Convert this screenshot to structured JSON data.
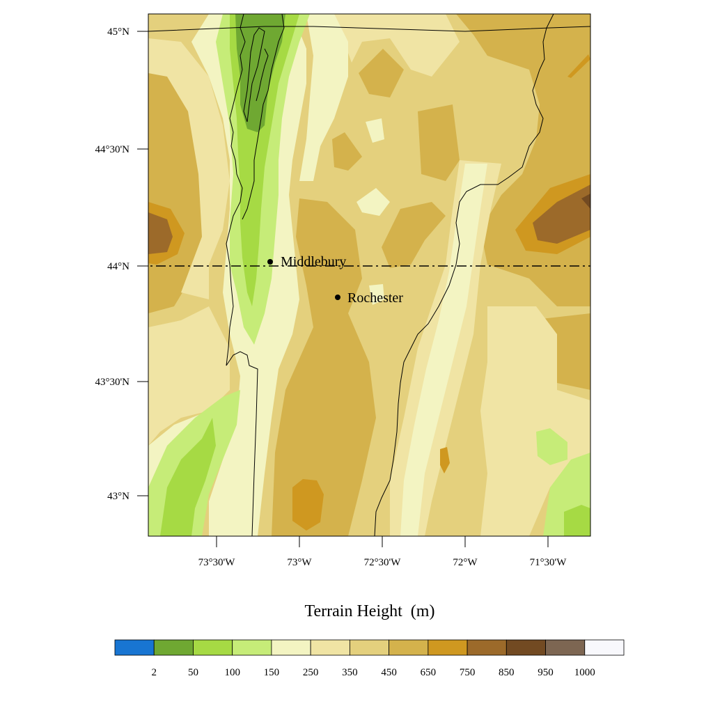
{
  "map": {
    "title": "Terrain Height",
    "units": "(m)",
    "lat_ticks": [
      "45°N",
      "44°30'N",
      "44°N",
      "43°30'N",
      "43°N"
    ],
    "lon_ticks": [
      "73°30'W",
      "73°W",
      "72°30'W",
      "72°W",
      "71°30'W"
    ],
    "places": [
      {
        "name": "Middlebury"
      },
      {
        "name": "Rochester"
      }
    ],
    "cross_section_lat": "44°N"
  },
  "colorbar": {
    "labels": [
      "2",
      "50",
      "100",
      "150",
      "250",
      "350",
      "450",
      "650",
      "750",
      "850",
      "950",
      "1000"
    ],
    "colors": [
      "#1875d2",
      "#6fa832",
      "#a6da44",
      "#c6ec78",
      "#f3f4c2",
      "#f0e4a4",
      "#e4d07d",
      "#d4b24c",
      "#cf9820",
      "#9c6a2a",
      "#724a22",
      "#7d6652",
      "#f8f8fc"
    ]
  },
  "palette": {
    "dark_green": "#6fa832",
    "green": "#a6da44",
    "light_green": "#c6ec78",
    "cream": "#f3f4c2",
    "pale_tan": "#f0e4a4",
    "tan": "#e4d07d",
    "gold": "#d4b24c",
    "orange": "#cf9820",
    "brown": "#9c6a2a",
    "dark_brown": "#724a22"
  }
}
